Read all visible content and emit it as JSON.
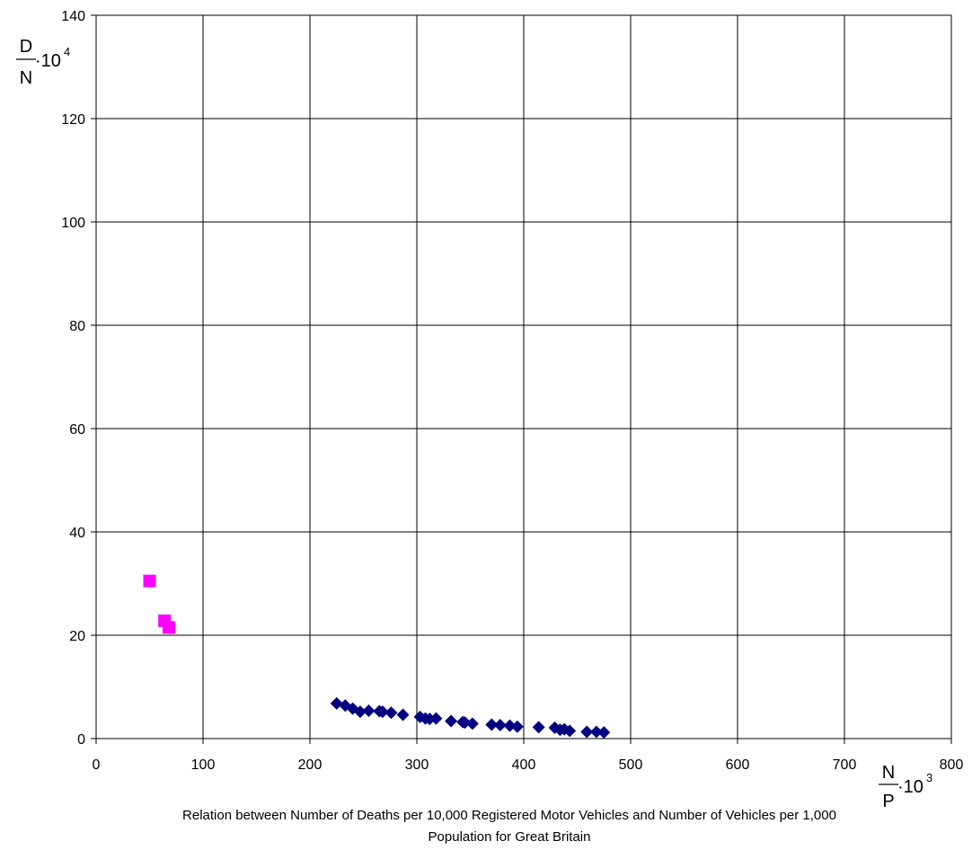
{
  "chart_data": {
    "type": "scatter",
    "xlim": [
      0,
      800
    ],
    "ylim": [
      0,
      140
    ],
    "x_ticks": [
      "0",
      "100",
      "200",
      "300",
      "400",
      "500",
      "600",
      "700",
      "800"
    ],
    "y_ticks": [
      "0",
      "20",
      "40",
      "60",
      "80",
      "100",
      "120",
      "140"
    ],
    "grid": true,
    "y_axis_label": {
      "numerator": "D",
      "denominator": "N",
      "multiplier": "·10",
      "exponent": "4"
    },
    "x_axis_label": {
      "numerator": "N",
      "denominator": "P",
      "multiplier": "·10",
      "exponent": "3"
    },
    "caption_line1": "Relation between Number of Deaths per 10,000 Registered Motor Vehicles and Number of Vehicles per 1,000",
    "caption_line2": "Population for  Great Britain",
    "series": [
      {
        "marker": "square",
        "color": "#ff00ff",
        "points": [
          [
            50,
            30.5
          ],
          [
            64,
            22.8
          ],
          [
            68,
            21.5
          ]
        ]
      },
      {
        "marker": "diamond",
        "color": "#000080",
        "points": [
          [
            225,
            6.8
          ],
          [
            233,
            6.4
          ],
          [
            240,
            5.8
          ],
          [
            247,
            5.2
          ],
          [
            255,
            5.4
          ],
          [
            265,
            5.3
          ],
          [
            268,
            5.2
          ],
          [
            276,
            5.0
          ],
          [
            287,
            4.6
          ],
          [
            303,
            4.2
          ],
          [
            308,
            3.9
          ],
          [
            312,
            3.8
          ],
          [
            318,
            3.9
          ],
          [
            332,
            3.4
          ],
          [
            343,
            3.2
          ],
          [
            345,
            3.1
          ],
          [
            352,
            2.9
          ],
          [
            370,
            2.7
          ],
          [
            378,
            2.6
          ],
          [
            387,
            2.5
          ],
          [
            394,
            2.3
          ],
          [
            414,
            2.2
          ],
          [
            429,
            2.1
          ],
          [
            434,
            1.7
          ],
          [
            438,
            1.8
          ],
          [
            443,
            1.5
          ],
          [
            459,
            1.3
          ],
          [
            468,
            1.3
          ],
          [
            475,
            1.2
          ]
        ]
      }
    ]
  }
}
